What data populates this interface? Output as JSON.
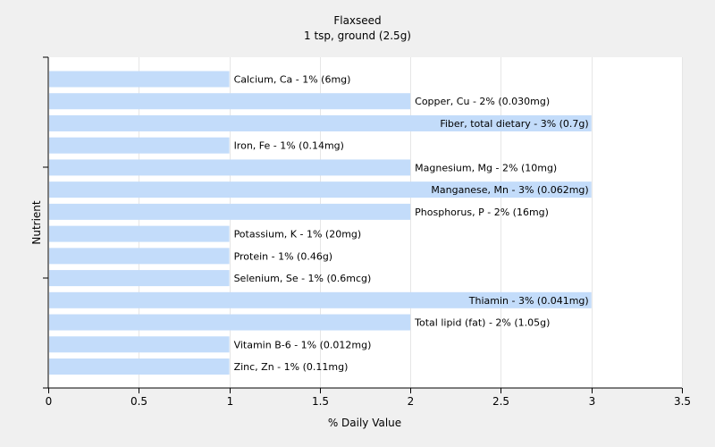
{
  "chart_data": {
    "type": "bar",
    "orientation": "horizontal",
    "title": "Flaxseed",
    "subtitle": "1 tsp, ground (2.5g)",
    "xlabel": "% Daily Value",
    "ylabel": "Nutrient",
    "xlim": [
      0,
      3.5
    ],
    "xticks": [
      "0",
      "0.5",
      "1",
      "1.5",
      "2",
      "2.5",
      "3",
      "3.5"
    ],
    "grid": true,
    "bar_color": "#c3dcfa",
    "categories": [
      "Calcium, Ca",
      "Copper, Cu",
      "Fiber, total dietary",
      "Iron, Fe",
      "Magnesium, Mg",
      "Manganese, Mn",
      "Phosphorus, P",
      "Potassium, K",
      "Protein",
      "Selenium, Se",
      "Thiamin",
      "Total lipid (fat)",
      "Vitamin B-6",
      "Zinc, Zn"
    ],
    "values": [
      1,
      2,
      3,
      1,
      2,
      3,
      2,
      1,
      1,
      1,
      3,
      2,
      1,
      1
    ],
    "labels": [
      "Calcium, Ca - 1% (6mg)",
      "Copper, Cu - 2% (0.030mg)",
      "Fiber, total dietary - 3% (0.7g)",
      "Iron, Fe - 1% (0.14mg)",
      "Magnesium, Mg - 2% (10mg)",
      "Manganese, Mn - 3% (0.062mg)",
      "Phosphorus, P - 2% (16mg)",
      "Potassium, K - 1% (20mg)",
      "Protein - 1% (0.46g)",
      "Selenium, Se - 1% (0.6mcg)",
      "Thiamin - 3% (0.041mg)",
      "Total lipid (fat) - 2% (1.05g)",
      "Vitamin B-6 - 1% (0.012mg)",
      "Zinc, Zn - 1% (0.11mg)"
    ]
  }
}
